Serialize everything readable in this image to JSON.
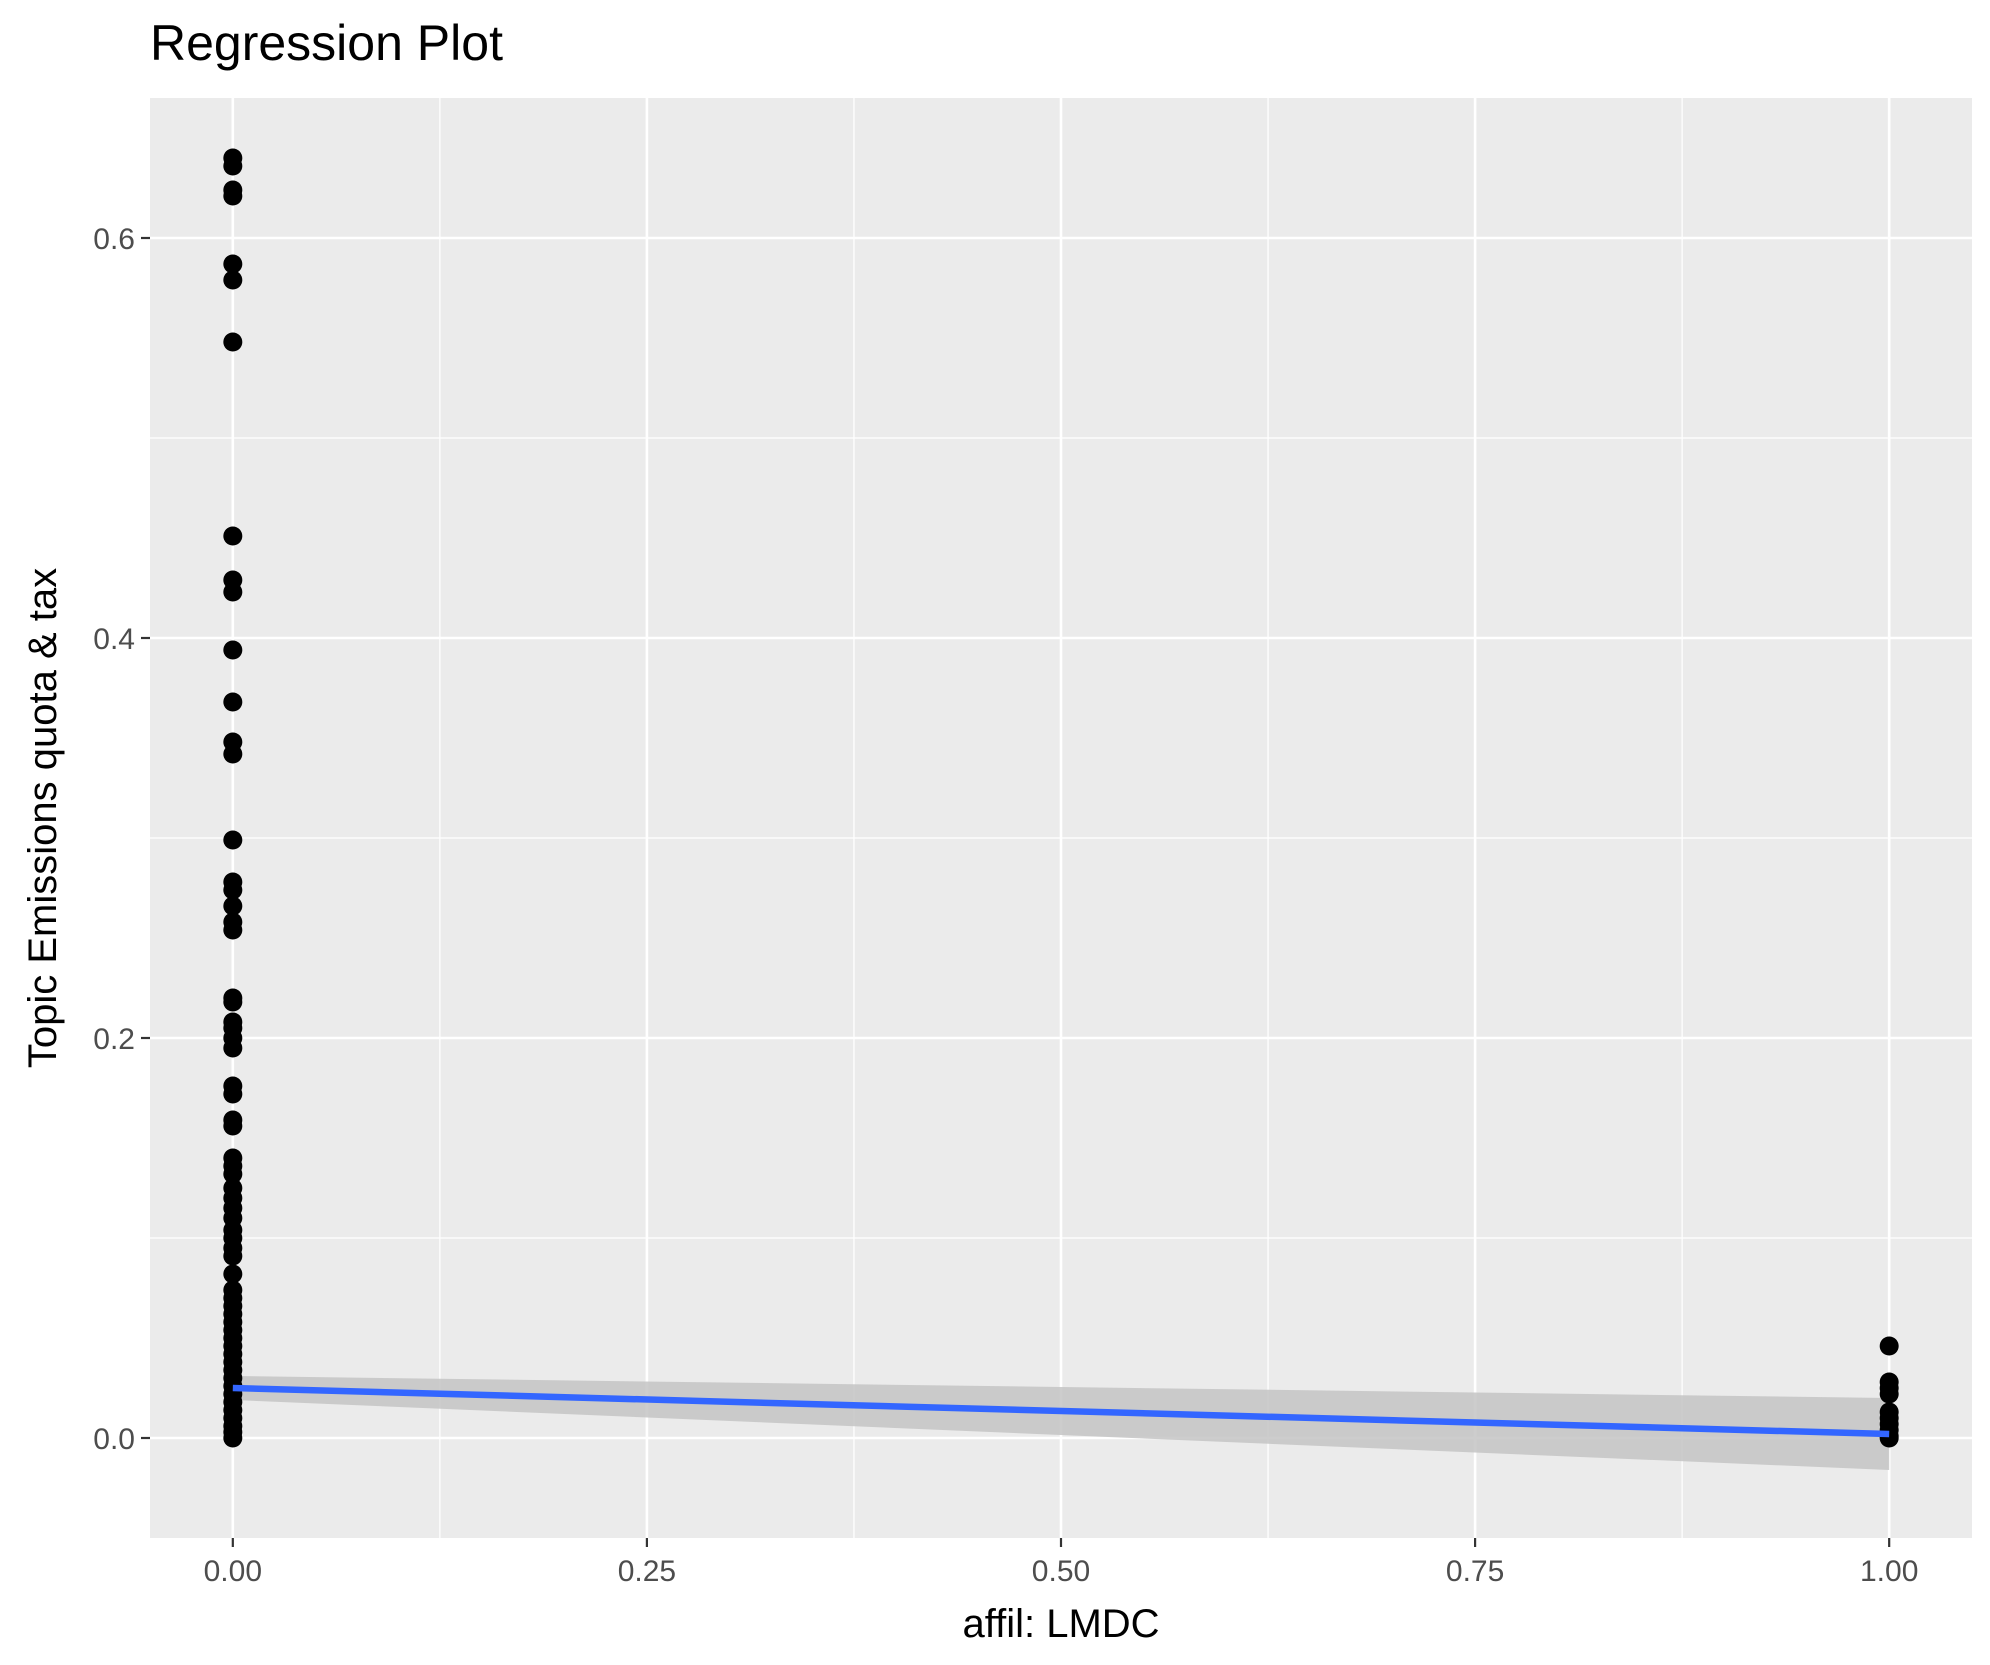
{
  "chart_data": {
    "type": "scatter",
    "title": "Regression Plot",
    "xlabel": "affil: LMDC",
    "ylabel": "Topic Emissions quota & tax",
    "xlim": [
      -0.05,
      1.05
    ],
    "ylim": [
      -0.05,
      0.67
    ],
    "x_ticks": [
      0.0,
      0.25,
      0.5,
      0.75,
      1.0
    ],
    "x_tick_labels": [
      "0.00",
      "0.25",
      "0.50",
      "0.75",
      "1.00"
    ],
    "y_ticks": [
      0.0,
      0.2,
      0.4,
      0.6
    ],
    "y_tick_labels": [
      "0.0",
      "0.2",
      "0.4",
      "0.6"
    ],
    "grid": true,
    "background_color": "#ebebeb",
    "point_color": "#000000",
    "fit_line_color": "#3366ff",
    "ci_band_color": "#c4c4c4",
    "points": [
      {
        "x": 0,
        "y": 0.64
      },
      {
        "x": 0,
        "y": 0.636
      },
      {
        "x": 0,
        "y": 0.624
      },
      {
        "x": 0,
        "y": 0.621
      },
      {
        "x": 0,
        "y": 0.587
      },
      {
        "x": 0,
        "y": 0.579
      },
      {
        "x": 0,
        "y": 0.548
      },
      {
        "x": 0,
        "y": 0.451
      },
      {
        "x": 0,
        "y": 0.429
      },
      {
        "x": 0,
        "y": 0.423
      },
      {
        "x": 0,
        "y": 0.394
      },
      {
        "x": 0,
        "y": 0.368
      },
      {
        "x": 0,
        "y": 0.348
      },
      {
        "x": 0,
        "y": 0.342
      },
      {
        "x": 0,
        "y": 0.299
      },
      {
        "x": 0,
        "y": 0.278
      },
      {
        "x": 0,
        "y": 0.274
      },
      {
        "x": 0,
        "y": 0.266
      },
      {
        "x": 0,
        "y": 0.258
      },
      {
        "x": 0,
        "y": 0.254
      },
      {
        "x": 0,
        "y": 0.22
      },
      {
        "x": 0,
        "y": 0.218
      },
      {
        "x": 0,
        "y": 0.208
      },
      {
        "x": 0,
        "y": 0.205
      },
      {
        "x": 0,
        "y": 0.2
      },
      {
        "x": 0,
        "y": 0.195
      },
      {
        "x": 0,
        "y": 0.176
      },
      {
        "x": 0,
        "y": 0.172
      },
      {
        "x": 0,
        "y": 0.159
      },
      {
        "x": 0,
        "y": 0.156
      },
      {
        "x": 0,
        "y": 0.14
      },
      {
        "x": 0,
        "y": 0.136
      },
      {
        "x": 0,
        "y": 0.132
      },
      {
        "x": 0,
        "y": 0.125
      },
      {
        "x": 0,
        "y": 0.12
      },
      {
        "x": 0,
        "y": 0.115
      },
      {
        "x": 0,
        "y": 0.11
      },
      {
        "x": 0,
        "y": 0.104
      },
      {
        "x": 0,
        "y": 0.1
      },
      {
        "x": 0,
        "y": 0.095
      },
      {
        "x": 0,
        "y": 0.091
      },
      {
        "x": 0,
        "y": 0.082
      },
      {
        "x": 0,
        "y": 0.074
      },
      {
        "x": 0,
        "y": 0.07
      },
      {
        "x": 0,
        "y": 0.066
      },
      {
        "x": 0,
        "y": 0.062
      },
      {
        "x": 0,
        "y": 0.058
      },
      {
        "x": 0,
        "y": 0.054
      },
      {
        "x": 0,
        "y": 0.05
      },
      {
        "x": 0,
        "y": 0.046
      },
      {
        "x": 0,
        "y": 0.042
      },
      {
        "x": 0,
        "y": 0.038
      },
      {
        "x": 0,
        "y": 0.034
      },
      {
        "x": 0,
        "y": 0.03
      },
      {
        "x": 0,
        "y": 0.026
      },
      {
        "x": 0,
        "y": 0.022
      },
      {
        "x": 0,
        "y": 0.018
      },
      {
        "x": 0,
        "y": 0.014
      },
      {
        "x": 0,
        "y": 0.01
      },
      {
        "x": 0,
        "y": 0.006
      },
      {
        "x": 0,
        "y": 0.003
      },
      {
        "x": 0,
        "y": 0.0
      },
      {
        "x": 1,
        "y": 0.046
      },
      {
        "x": 1,
        "y": 0.028
      },
      {
        "x": 1,
        "y": 0.025
      },
      {
        "x": 1,
        "y": 0.022
      },
      {
        "x": 1,
        "y": 0.013
      },
      {
        "x": 1,
        "y": 0.01
      },
      {
        "x": 1,
        "y": 0.007
      },
      {
        "x": 1,
        "y": 0.004
      },
      {
        "x": 1,
        "y": 0.001
      },
      {
        "x": 1,
        "y": 0.0
      }
    ],
    "fit_line": {
      "x": [
        0,
        1
      ],
      "y": [
        0.025,
        0.002
      ]
    },
    "confidence_band": {
      "x": [
        0,
        1
      ],
      "lower": [
        0.019,
        -0.016
      ],
      "upper": [
        0.031,
        0.02
      ]
    }
  }
}
